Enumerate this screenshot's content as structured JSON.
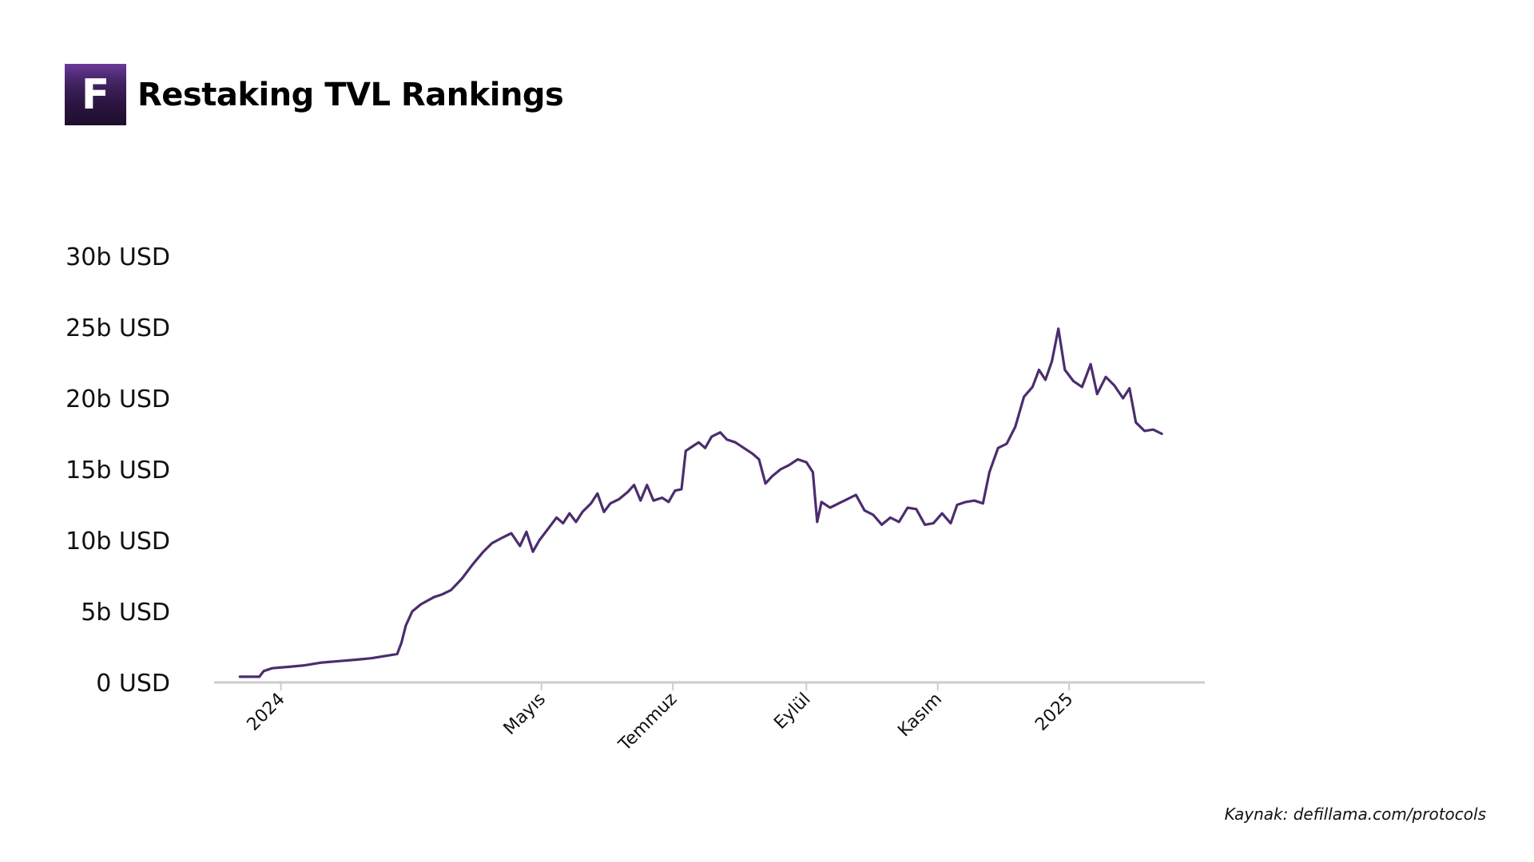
{
  "header": {
    "logo_letter": "F",
    "title": "Restaking TVL Rankings"
  },
  "source": "Kaynak: defillama.com/protocols",
  "colors": {
    "line": "#4b2d6e",
    "axis": "#cccccc",
    "logo": "#3b1f57"
  },
  "chart_data": {
    "type": "line",
    "title": "Restaking TVL Rankings",
    "xlabel": "",
    "ylabel": "",
    "ylim": [
      0,
      30
    ],
    "y_unit": "b USD",
    "yticks": [
      {
        "value": 0,
        "label": "0 USD"
      },
      {
        "value": 5,
        "label": "5b USD"
      },
      {
        "value": 10,
        "label": "10b USD"
      },
      {
        "value": 15,
        "label": "15b USD"
      },
      {
        "value": 20,
        "label": "20b USD"
      },
      {
        "value": 25,
        "label": "25b USD"
      },
      {
        "value": 30,
        "label": "30b USD"
      }
    ],
    "xlim": [
      "2023-12-01",
      "2025-03-05"
    ],
    "xticks": [
      {
        "date": "2024-01-01",
        "label": "2024"
      },
      {
        "date": "2024-05-01",
        "label": "Mayıs"
      },
      {
        "date": "2024-07-01",
        "label": "Temmuz"
      },
      {
        "date": "2024-09-01",
        "label": "Eylül"
      },
      {
        "date": "2024-11-01",
        "label": "Kasım"
      },
      {
        "date": "2025-01-01",
        "label": "2025"
      }
    ],
    "grid": false,
    "legend": "none",
    "series": [
      {
        "points": [
          [
            "2023-12-13",
            0.4
          ],
          [
            "2023-12-22",
            0.4
          ],
          [
            "2023-12-24",
            0.8
          ],
          [
            "2023-12-28",
            1.0
          ],
          [
            "2024-01-05",
            1.1
          ],
          [
            "2024-01-12",
            1.2
          ],
          [
            "2024-01-20",
            1.4
          ],
          [
            "2024-01-28",
            1.5
          ],
          [
            "2024-02-05",
            1.6
          ],
          [
            "2024-02-12",
            1.7
          ],
          [
            "2024-02-20",
            1.9
          ],
          [
            "2024-02-24",
            2.0
          ],
          [
            "2024-02-26",
            2.8
          ],
          [
            "2024-02-28",
            4.0
          ],
          [
            "2024-03-02",
            5.0
          ],
          [
            "2024-03-06",
            5.5
          ],
          [
            "2024-03-12",
            6.0
          ],
          [
            "2024-03-16",
            6.2
          ],
          [
            "2024-03-20",
            6.5
          ],
          [
            "2024-03-25",
            7.3
          ],
          [
            "2024-03-30",
            8.3
          ],
          [
            "2024-04-04",
            9.2
          ],
          [
            "2024-04-08",
            9.8
          ],
          [
            "2024-04-13",
            10.2
          ],
          [
            "2024-04-17",
            10.5
          ],
          [
            "2024-04-21",
            9.6
          ],
          [
            "2024-04-24",
            10.6
          ],
          [
            "2024-04-27",
            9.2
          ],
          [
            "2024-04-30",
            10.0
          ],
          [
            "2024-05-04",
            10.8
          ],
          [
            "2024-05-08",
            11.6
          ],
          [
            "2024-05-11",
            11.2
          ],
          [
            "2024-05-14",
            11.9
          ],
          [
            "2024-05-17",
            11.3
          ],
          [
            "2024-05-20",
            12.0
          ],
          [
            "2024-05-24",
            12.6
          ],
          [
            "2024-05-27",
            13.3
          ],
          [
            "2024-05-30",
            12.0
          ],
          [
            "2024-06-02",
            12.6
          ],
          [
            "2024-06-06",
            12.9
          ],
          [
            "2024-06-10",
            13.4
          ],
          [
            "2024-06-13",
            13.9
          ],
          [
            "2024-06-16",
            12.8
          ],
          [
            "2024-06-19",
            13.9
          ],
          [
            "2024-06-22",
            12.8
          ],
          [
            "2024-06-26",
            13.0
          ],
          [
            "2024-06-29",
            12.7
          ],
          [
            "2024-07-02",
            13.5
          ],
          [
            "2024-07-05",
            13.6
          ],
          [
            "2024-07-07",
            16.3
          ],
          [
            "2024-07-10",
            16.6
          ],
          [
            "2024-07-13",
            16.9
          ],
          [
            "2024-07-16",
            16.5
          ],
          [
            "2024-07-19",
            17.3
          ],
          [
            "2024-07-23",
            17.6
          ],
          [
            "2024-07-26",
            17.1
          ],
          [
            "2024-07-30",
            16.9
          ],
          [
            "2024-08-03",
            16.5
          ],
          [
            "2024-08-07",
            16.1
          ],
          [
            "2024-08-10",
            15.7
          ],
          [
            "2024-08-13",
            14.0
          ],
          [
            "2024-08-16",
            14.5
          ],
          [
            "2024-08-20",
            15.0
          ],
          [
            "2024-08-24",
            15.3
          ],
          [
            "2024-08-28",
            15.7
          ],
          [
            "2024-09-01",
            15.5
          ],
          [
            "2024-09-04",
            14.8
          ],
          [
            "2024-09-06",
            11.3
          ],
          [
            "2024-09-08",
            12.7
          ],
          [
            "2024-09-12",
            12.3
          ],
          [
            "2024-09-16",
            12.6
          ],
          [
            "2024-09-20",
            12.9
          ],
          [
            "2024-09-24",
            13.2
          ],
          [
            "2024-09-28",
            12.1
          ],
          [
            "2024-10-02",
            11.8
          ],
          [
            "2024-10-06",
            11.1
          ],
          [
            "2024-10-10",
            11.6
          ],
          [
            "2024-10-14",
            11.3
          ],
          [
            "2024-10-18",
            12.3
          ],
          [
            "2024-10-22",
            12.2
          ],
          [
            "2024-10-26",
            11.1
          ],
          [
            "2024-10-30",
            11.2
          ],
          [
            "2024-11-03",
            11.9
          ],
          [
            "2024-11-07",
            11.2
          ],
          [
            "2024-11-10",
            12.5
          ],
          [
            "2024-11-14",
            12.7
          ],
          [
            "2024-11-18",
            12.8
          ],
          [
            "2024-11-22",
            12.6
          ],
          [
            "2024-11-25",
            14.8
          ],
          [
            "2024-11-29",
            16.5
          ],
          [
            "2024-12-03",
            16.8
          ],
          [
            "2024-12-07",
            18.0
          ],
          [
            "2024-12-11",
            20.1
          ],
          [
            "2024-12-15",
            20.8
          ],
          [
            "2024-12-18",
            22.0
          ],
          [
            "2024-12-21",
            21.3
          ],
          [
            "2024-12-24",
            22.6
          ],
          [
            "2024-12-27",
            24.9
          ],
          [
            "2024-12-30",
            22.0
          ],
          [
            "2025-01-03",
            21.2
          ],
          [
            "2025-01-07",
            20.8
          ],
          [
            "2025-01-11",
            22.4
          ],
          [
            "2025-01-14",
            20.3
          ],
          [
            "2025-01-18",
            21.5
          ],
          [
            "2025-01-22",
            20.9
          ],
          [
            "2025-01-26",
            20.0
          ],
          [
            "2025-01-29",
            20.7
          ],
          [
            "2025-02-01",
            18.3
          ],
          [
            "2025-02-05",
            17.7
          ],
          [
            "2025-02-09",
            17.8
          ],
          [
            "2025-02-13",
            17.5
          ]
        ]
      }
    ]
  }
}
